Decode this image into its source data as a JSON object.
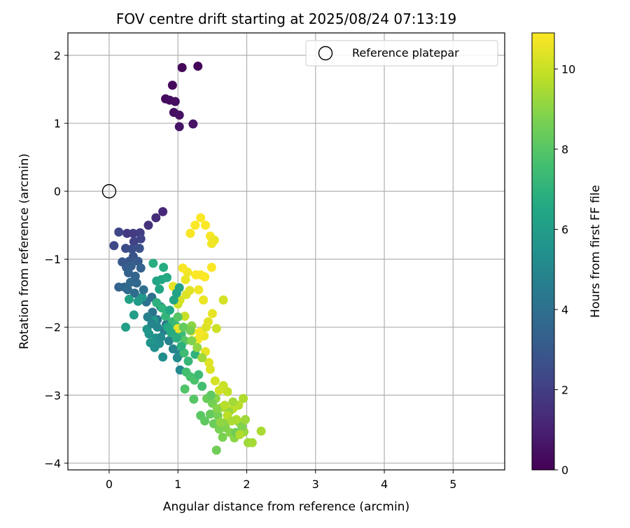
{
  "chart_data": {
    "type": "scatter",
    "title": "FOV centre drift starting at 2025/08/24 07:13:19",
    "xlabel": "Angular distance from reference (arcmin)",
    "ylabel": "Rotation from reference (arcmin)",
    "xlim": [
      -0.6,
      5.75
    ],
    "ylim": [
      -4.1,
      2.33
    ],
    "xticks": [
      0,
      1,
      2,
      3,
      4,
      5
    ],
    "yticks": [
      -4,
      -3,
      -2,
      -1,
      0,
      1,
      2
    ],
    "xtick_labels": [
      "0",
      "1",
      "2",
      "3",
      "4",
      "5"
    ],
    "ytick_labels": [
      "−4",
      "−3",
      "−2",
      "−1",
      "0",
      "1",
      "2"
    ],
    "grid": true,
    "legend": {
      "placement": "top-right",
      "entries": [
        "Reference platepar"
      ]
    },
    "reference_point": {
      "x": 0,
      "y": 0
    },
    "colorbar": {
      "label": "Hours from first FF file",
      "colormap": "viridis",
      "range": [
        0,
        10.9
      ],
      "ticks": [
        0,
        2,
        4,
        6,
        8,
        10
      ],
      "tick_labels": [
        "0",
        "2",
        "4",
        "6",
        "8",
        "10"
      ]
    },
    "series": [
      {
        "points": [
          [
            1.29,
            1.84,
            0.1
          ],
          [
            1.06,
            1.82,
            0.18
          ],
          [
            0.92,
            1.56,
            0.25
          ],
          [
            0.82,
            1.36,
            0.3
          ],
          [
            0.88,
            1.34,
            0.35
          ],
          [
            0.96,
            1.32,
            0.4
          ],
          [
            0.94,
            1.16,
            0.45
          ],
          [
            1.02,
            1.12,
            0.5
          ],
          [
            1.22,
            0.99,
            0.55
          ],
          [
            1.02,
            0.95,
            0.6
          ],
          [
            0.78,
            -0.3,
            1.2
          ],
          [
            0.68,
            -0.39,
            1.4
          ],
          [
            0.57,
            -0.5,
            1.6
          ],
          [
            0.26,
            -0.62,
            1.8
          ],
          [
            0.35,
            -0.62,
            1.9
          ],
          [
            0.45,
            -0.61,
            2.0
          ],
          [
            0.36,
            -0.74,
            2.1
          ],
          [
            0.46,
            -0.7,
            2.2
          ],
          [
            0.14,
            -0.6,
            2.3
          ],
          [
            0.07,
            -0.8,
            2.4
          ],
          [
            0.24,
            -0.84,
            2.5
          ],
          [
            0.33,
            -0.85,
            2.6
          ],
          [
            0.44,
            -0.84,
            2.7
          ],
          [
            0.35,
            -0.96,
            2.8
          ],
          [
            0.29,
            -1.03,
            2.9
          ],
          [
            0.19,
            -1.04,
            3.0
          ],
          [
            0.42,
            -1.03,
            3.1
          ],
          [
            0.25,
            -1.12,
            3.2
          ],
          [
            0.32,
            -1.1,
            3.3
          ],
          [
            0.46,
            -1.13,
            3.4
          ],
          [
            0.14,
            -1.41,
            3.5
          ],
          [
            0.22,
            -1.41,
            3.6
          ],
          [
            0.31,
            -1.34,
            3.7
          ],
          [
            0.27,
            -1.45,
            3.8
          ],
          [
            0.37,
            -1.5,
            3.9
          ],
          [
            0.62,
            -1.56,
            4.0
          ],
          [
            0.54,
            -1.63,
            4.1
          ],
          [
            0.63,
            -1.78,
            4.2
          ],
          [
            0.75,
            -1.7,
            4.3
          ],
          [
            0.7,
            -1.89,
            4.4
          ],
          [
            0.83,
            -1.96,
            4.5
          ],
          [
            0.8,
            -2.05,
            4.6
          ],
          [
            0.95,
            -2.08,
            4.7
          ],
          [
            0.87,
            -2.2,
            4.8
          ],
          [
            0.93,
            -2.32,
            4.9
          ],
          [
            1.02,
            -2.4,
            5.0
          ],
          [
            1.03,
            -2.63,
            5.1
          ],
          [
            0.99,
            -2.45,
            5.2
          ],
          [
            0.78,
            -2.44,
            5.3
          ],
          [
            0.73,
            -2.24,
            5.4
          ],
          [
            0.68,
            -2.16,
            5.5
          ],
          [
            0.6,
            -2.23,
            5.6
          ],
          [
            0.55,
            -2.03,
            5.7
          ],
          [
            0.48,
            -1.56,
            5.8
          ],
          [
            0.42,
            -1.62,
            5.9
          ],
          [
            0.36,
            -1.82,
            6.0
          ],
          [
            0.24,
            -2.0,
            6.1
          ],
          [
            0.29,
            -1.59,
            6.2
          ],
          [
            0.69,
            -1.32,
            6.3
          ],
          [
            0.73,
            -1.44,
            6.4
          ],
          [
            0.76,
            -1.3,
            6.5
          ],
          [
            0.84,
            -1.27,
            6.6
          ],
          [
            0.79,
            -1.12,
            6.7
          ],
          [
            0.64,
            -1.06,
            6.8
          ],
          [
            0.69,
            -1.64,
            6.9
          ],
          [
            0.77,
            -1.72,
            7.0
          ],
          [
            0.82,
            -1.84,
            7.1
          ],
          [
            0.92,
            -1.92,
            7.2
          ],
          [
            0.97,
            -1.98,
            7.3
          ],
          [
            1.05,
            -2.1,
            7.4
          ],
          [
            1.09,
            -2.38,
            7.5
          ],
          [
            1.12,
            -2.66,
            7.6
          ],
          [
            1.18,
            -2.73,
            7.7
          ],
          [
            1.24,
            -2.78,
            7.8
          ],
          [
            1.1,
            -2.91,
            7.9
          ],
          [
            1.23,
            -3.06,
            8.0
          ],
          [
            1.33,
            -3.3,
            8.1
          ],
          [
            1.39,
            -3.38,
            8.2
          ],
          [
            1.47,
            -3.28,
            8.3
          ],
          [
            1.52,
            -3.42,
            8.4
          ],
          [
            1.56,
            -3.81,
            8.5
          ],
          [
            1.58,
            -3.3,
            8.6
          ],
          [
            1.65,
            -3.62,
            8.7
          ],
          [
            1.69,
            -3.48,
            8.8
          ],
          [
            1.76,
            -3.55,
            8.9
          ],
          [
            1.82,
            -3.63,
            9.0
          ],
          [
            1.89,
            -3.4,
            9.1
          ],
          [
            1.96,
            -3.54,
            9.2
          ],
          [
            2.02,
            -3.7,
            9.3
          ],
          [
            2.08,
            -3.7,
            9.4
          ],
          [
            2.21,
            -3.53,
            9.5
          ],
          [
            1.95,
            -3.05,
            9.6
          ],
          [
            1.88,
            -3.15,
            9.7
          ],
          [
            1.8,
            -3.2,
            9.8
          ],
          [
            1.72,
            -2.95,
            9.9
          ],
          [
            1.66,
            -2.86,
            10.0
          ],
          [
            1.6,
            -2.93,
            10.1
          ],
          [
            1.54,
            -2.79,
            10.2
          ],
          [
            1.47,
            -2.62,
            10.3
          ],
          [
            1.45,
            -2.52,
            10.4
          ],
          [
            1.4,
            -2.36,
            10.5
          ],
          [
            1.38,
            -2.13,
            10.6
          ],
          [
            1.29,
            -2.18,
            10.7
          ],
          [
            1.32,
            -2.07,
            10.8
          ],
          [
            1.2,
            -2.06,
            10.85
          ],
          [
            1.1,
            -1.84,
            10.0
          ],
          [
            1.0,
            -1.66,
            10.1
          ],
          [
            1.03,
            -1.6,
            10.2
          ],
          [
            1.12,
            -1.52,
            10.3
          ],
          [
            1.17,
            -1.46,
            10.4
          ],
          [
            0.93,
            -1.4,
            10.5
          ],
          [
            1.11,
            -1.3,
            10.6
          ],
          [
            1.14,
            -1.19,
            10.7
          ],
          [
            1.07,
            -1.13,
            10.8
          ],
          [
            1.26,
            -1.23,
            10.85
          ],
          [
            1.33,
            -1.23,
            10.85
          ],
          [
            1.39,
            -1.26,
            10.85
          ],
          [
            1.49,
            -1.12,
            10.85
          ],
          [
            1.66,
            -1.6,
            10.2
          ],
          [
            1.56,
            -2.02,
            10.1
          ],
          [
            1.41,
            -2.0,
            10.3
          ],
          [
            1.44,
            -1.92,
            10.4
          ],
          [
            1.5,
            -1.8,
            10.5
          ],
          [
            1.37,
            -1.6,
            10.6
          ],
          [
            1.3,
            -1.45,
            10.7
          ],
          [
            1.18,
            -0.62,
            10.8
          ],
          [
            1.25,
            -0.5,
            10.85
          ],
          [
            1.33,
            -0.39,
            10.85
          ],
          [
            1.4,
            -0.5,
            10.85
          ],
          [
            1.47,
            -0.66,
            10.8
          ],
          [
            1.53,
            -0.72,
            10.6
          ],
          [
            1.49,
            -0.77,
            10.7
          ],
          [
            1.0,
            -2.02,
            10.5
          ],
          [
            1.2,
            -1.98,
            9.0
          ],
          [
            1.1,
            -2.2,
            8.0
          ],
          [
            1.25,
            -2.4,
            7.0
          ],
          [
            1.55,
            -3.05,
            9.0
          ],
          [
            1.64,
            -3.18,
            9.5
          ],
          [
            1.74,
            -3.25,
            9.2
          ],
          [
            1.85,
            -3.36,
            9.6
          ],
          [
            1.93,
            -3.46,
            8.8
          ],
          [
            1.7,
            -3.4,
            8.9
          ],
          [
            1.6,
            -3.5,
            8.7
          ],
          [
            1.5,
            -3.12,
            8.6
          ],
          [
            1.42,
            -3.05,
            8.4
          ],
          [
            1.48,
            -3.0,
            8.2
          ],
          [
            1.35,
            -2.87,
            7.6
          ],
          [
            1.3,
            -2.7,
            7.4
          ],
          [
            1.15,
            -2.5,
            7.2
          ],
          [
            1.05,
            -2.28,
            6.9
          ],
          [
            0.98,
            -2.16,
            6.8
          ],
          [
            0.9,
            -2.08,
            6.7
          ],
          [
            0.85,
            -2.0,
            6.6
          ],
          [
            0.88,
            -1.75,
            6.5
          ],
          [
            0.94,
            -1.6,
            6.4
          ],
          [
            0.98,
            -1.5,
            6.3
          ],
          [
            1.02,
            -1.42,
            6.2
          ],
          [
            0.65,
            -1.9,
            5.8
          ],
          [
            0.58,
            -2.1,
            5.6
          ],
          [
            0.66,
            -2.3,
            5.4
          ],
          [
            0.75,
            -2.15,
            5.2
          ],
          [
            0.7,
            -2.0,
            5.0
          ],
          [
            0.62,
            -1.95,
            4.9
          ],
          [
            0.56,
            -1.85,
            4.7
          ],
          [
            1.0,
            -1.85,
            8.0
          ],
          [
            1.08,
            -2.0,
            8.3
          ],
          [
            1.18,
            -2.05,
            8.6
          ],
          [
            1.2,
            -2.2,
            8.8
          ],
          [
            1.28,
            -2.3,
            9.1
          ],
          [
            1.35,
            -2.45,
            9.3
          ],
          [
            1.72,
            -3.3,
            9.8
          ],
          [
            1.8,
            -3.1,
            9.4
          ],
          [
            1.62,
            -3.4,
            9.1
          ],
          [
            1.57,
            -3.2,
            8.9
          ],
          [
            1.84,
            -3.55,
            8.5
          ],
          [
            1.68,
            -3.15,
            9.7
          ],
          [
            1.78,
            -3.38,
            9.5
          ],
          [
            1.9,
            -3.58,
            9.6
          ],
          [
            1.98,
            -3.36,
            9.3
          ],
          [
            0.5,
            -1.45,
            4.0
          ],
          [
            0.4,
            -1.35,
            3.7
          ],
          [
            0.38,
            -1.25,
            3.5
          ],
          [
            0.28,
            -1.2,
            3.4
          ]
        ]
      }
    ]
  }
}
